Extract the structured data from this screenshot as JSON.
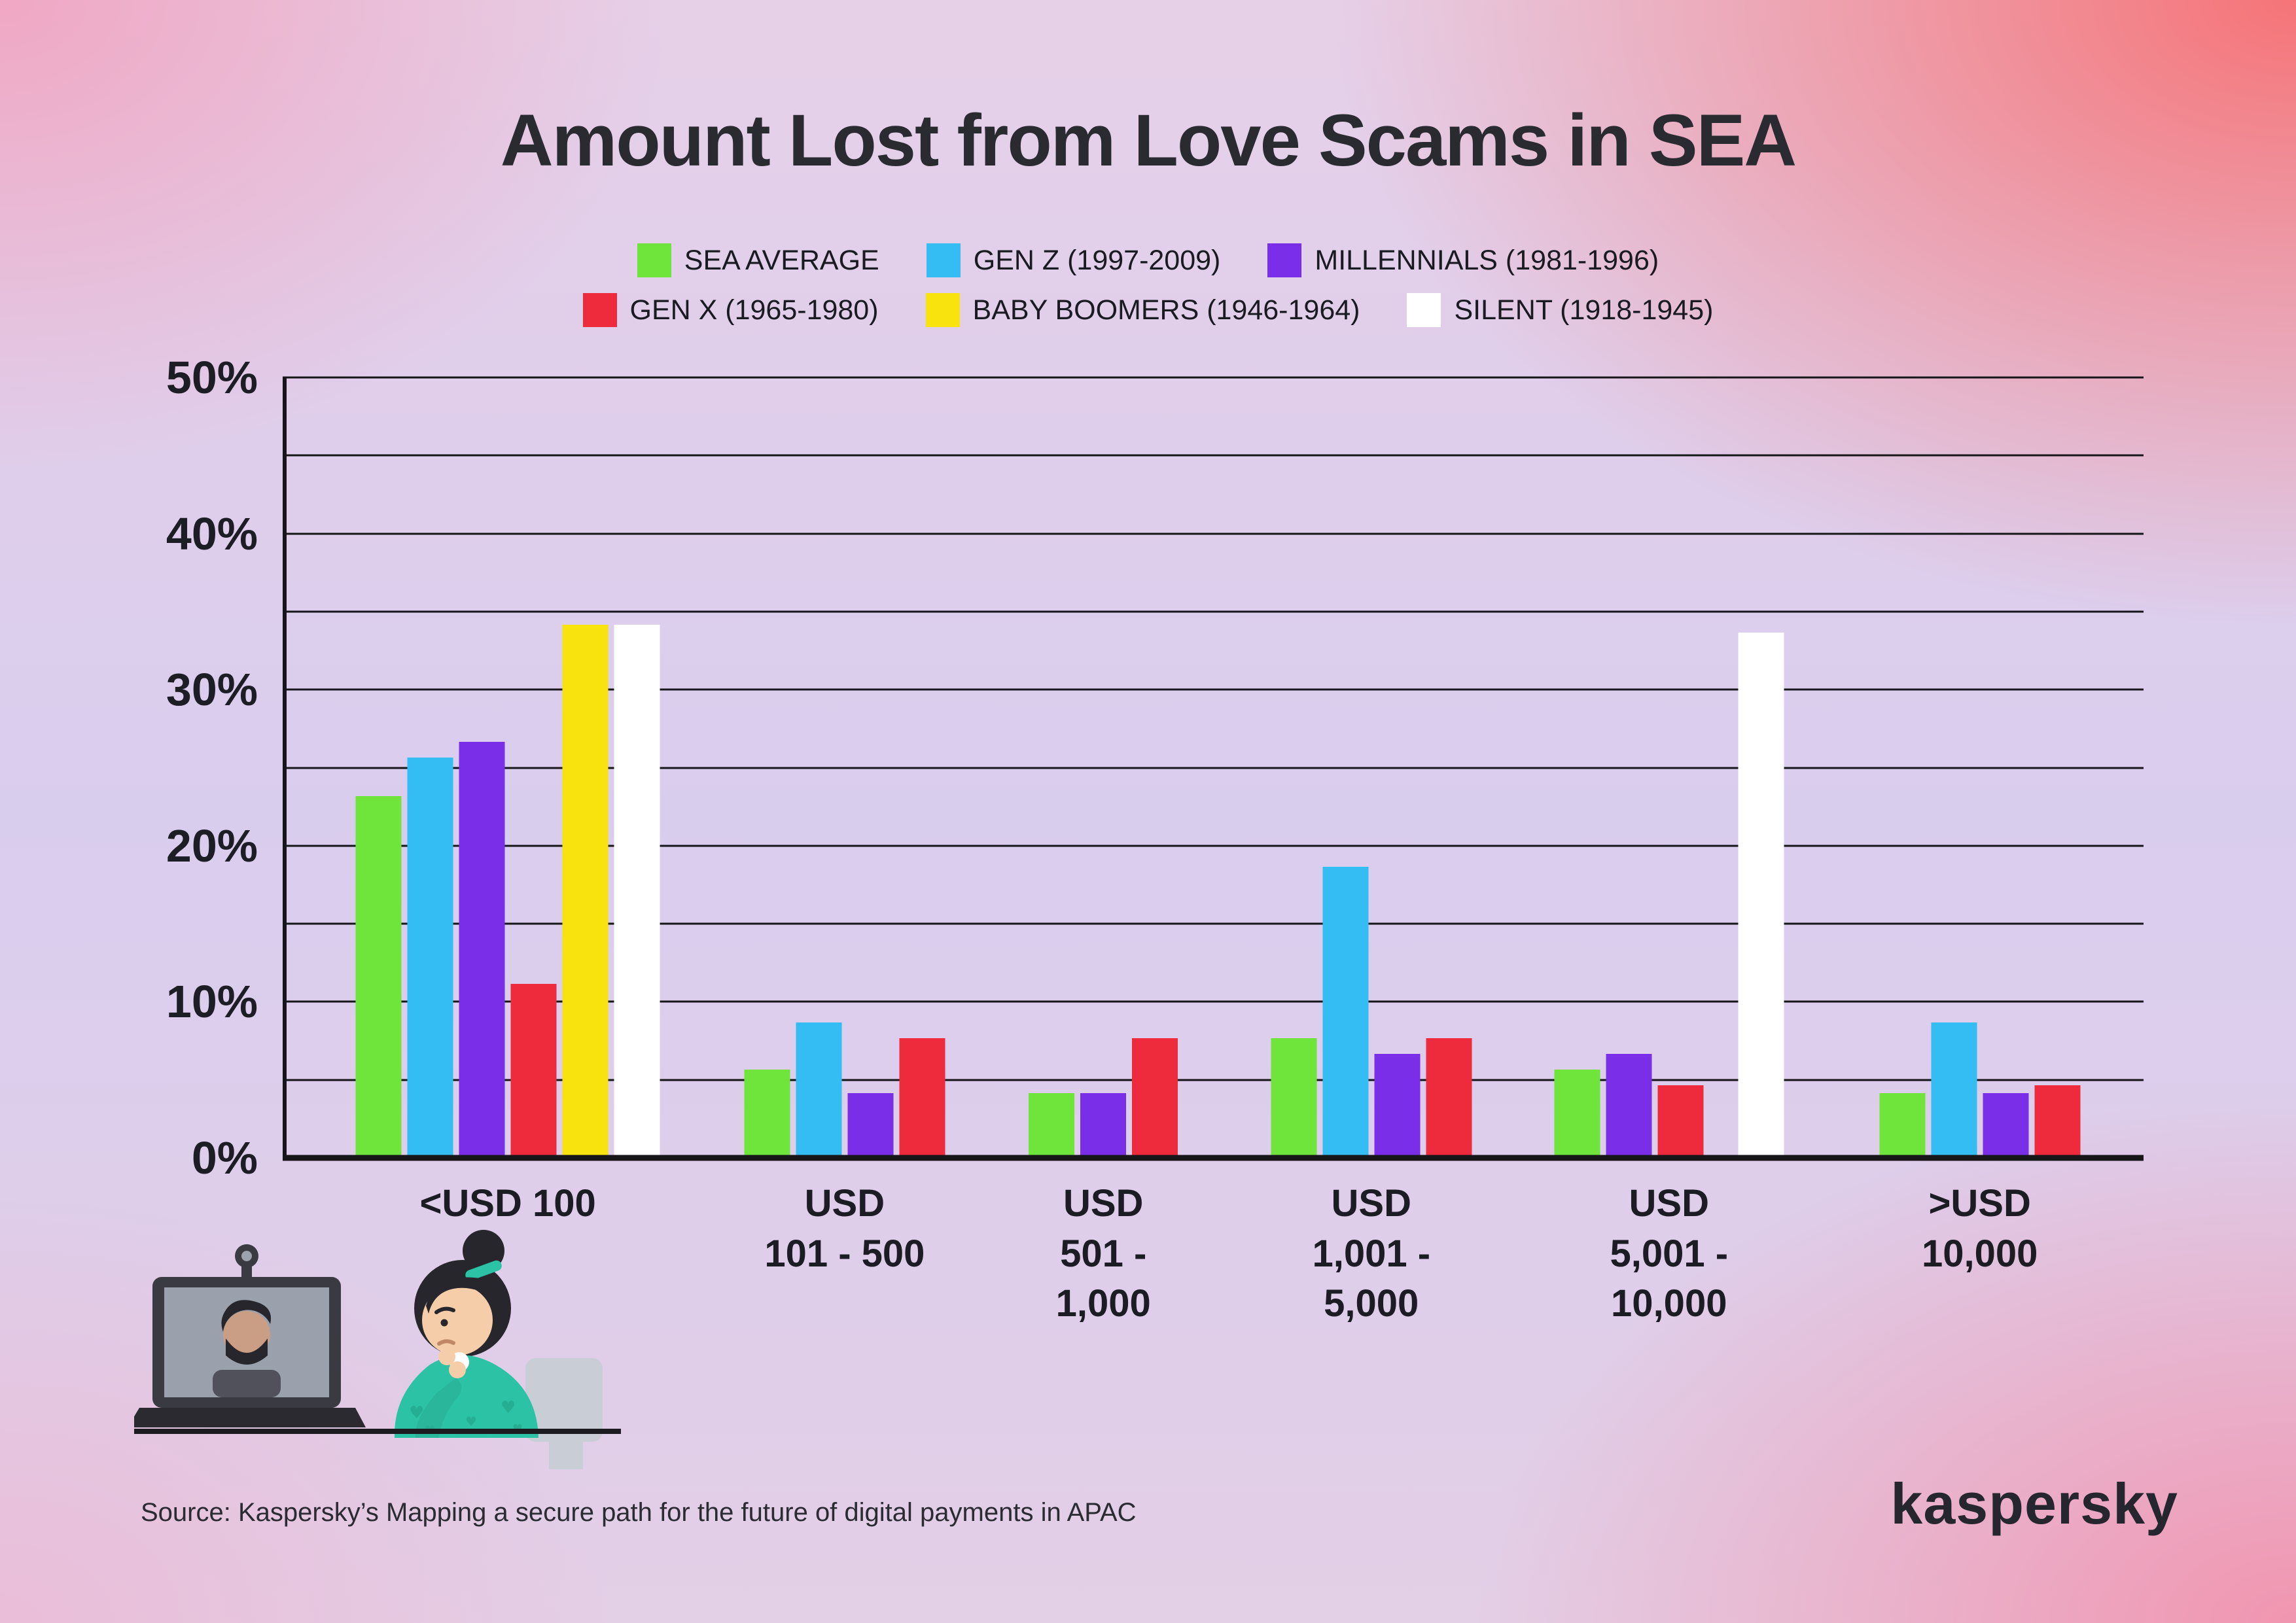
{
  "title": "Amount Lost from Love Scams in SEA",
  "source": "Source: Kaspersky’s Mapping a secure path for the future of digital payments in APAC",
  "brand": "kaspersky",
  "chart_data": {
    "type": "bar",
    "title": "Amount Lost from Love Scams in SEA",
    "unit": "%",
    "categories": [
      "<USD 100",
      "USD\n101 - 500",
      "USD\n501 -\n1,000",
      "USD\n1,001 -\n5,000",
      "USD\n5,001 -\n10,000",
      ">USD\n10,000"
    ],
    "series": [
      {
        "name": "SEA AVERAGE",
        "color": "#6FE53C",
        "values": [
          23,
          5.5,
          4,
          7.5,
          5.5,
          4
        ]
      },
      {
        "name": "GEN Z (1997-2009)",
        "color": "#33BDF2",
        "values": [
          25.5,
          8.5,
          0,
          18.5,
          0,
          8.5
        ]
      },
      {
        "name": "MILLENNIALS (1981-1996)",
        "color": "#7A2EE8",
        "values": [
          26.5,
          4,
          4,
          6.5,
          6.5,
          4
        ]
      },
      {
        "name": "GEN X (1965-1980)",
        "color": "#EE2B3C",
        "values": [
          11,
          7.5,
          7.5,
          7.5,
          4.5,
          4.5
        ]
      },
      {
        "name": "BABY BOOMERS (1946-1964)",
        "color": "#F8E30E",
        "values": [
          34,
          0,
          0,
          0,
          0,
          0
        ]
      },
      {
        "name": "SILENT (1918-1945)",
        "color": "#FFFFFF",
        "values": [
          34,
          0,
          0,
          0,
          33.5,
          0
        ]
      }
    ],
    "ylim": [
      0,
      50
    ],
    "grid_step": 5,
    "ytick_labels": [
      "0%",
      "10%",
      "20%",
      "30%",
      "40%",
      "50%"
    ],
    "legend_position": "top",
    "grid": true
  }
}
